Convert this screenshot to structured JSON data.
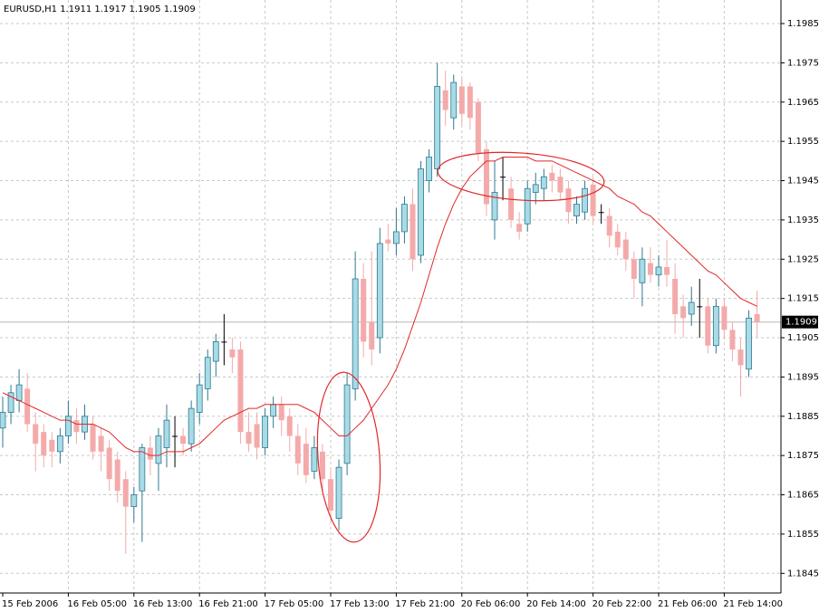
{
  "chart_data": {
    "type": "candlestick",
    "title": "EURUSD,H1  1.1911 1.1917 1.1905 1.1909",
    "categories": [
      "15 Feb 2006",
      null,
      null,
      null,
      null,
      null,
      null,
      null,
      "16 Feb 05:00",
      null,
      null,
      null,
      null,
      null,
      null,
      null,
      "16 Feb 13:00",
      null,
      null,
      null,
      null,
      null,
      null,
      null,
      "16 Feb 21:00",
      null,
      null,
      null,
      null,
      null,
      null,
      null,
      "17 Feb 05:00",
      null,
      null,
      null,
      null,
      null,
      null,
      null,
      "17 Feb 13:00",
      null,
      null,
      null,
      null,
      null,
      null,
      null,
      "17 Feb 21:00",
      null,
      null,
      null,
      null,
      null,
      null,
      null,
      "20 Feb 06:00",
      null,
      null,
      null,
      null,
      null,
      null,
      null,
      "20 Feb 14:00",
      null,
      null,
      null,
      null,
      null,
      null,
      null,
      "20 Feb 22:00",
      null,
      null,
      null,
      null,
      null,
      null,
      null,
      "21 Feb 06:00",
      null,
      null,
      null,
      null,
      null,
      null,
      null,
      "21 Feb 14:00",
      null,
      null,
      null,
      null
    ],
    "open": [
      1.1882,
      1.1886,
      1.1889,
      1.1892,
      1.1883,
      1.1881,
      1.1879,
      1.1876,
      1.188,
      1.1884,
      1.1881,
      1.1883,
      1.188,
      1.1877,
      1.1874,
      1.1869,
      1.1862,
      1.1866,
      1.1877,
      1.1873,
      1.1877,
      1.188,
      1.188,
      1.1878,
      1.1886,
      1.1892,
      1.1899,
      1.1904,
      1.1902,
      1.1902,
      1.1881,
      1.1883,
      1.1877,
      1.1885,
      1.1888,
      1.1885,
      1.188,
      1.1878,
      1.1871,
      1.1876,
      1.1869,
      1.1859,
      1.1873,
      1.1892,
      1.192,
      1.1909,
      1.1905,
      1.193,
      1.1929,
      1.1932,
      1.1939,
      1.1926,
      1.1945,
      1.1948,
      1.1968,
      1.1961,
      1.1969,
      1.1969,
      1.1965,
      1.1953,
      1.1935,
      1.1946,
      1.1943,
      1.1934,
      1.1934,
      1.1942,
      1.1943,
      1.1947,
      1.1946,
      1.1943,
      1.1936,
      1.1937,
      1.1944,
      1.1937,
      1.1936,
      1.1932,
      1.193,
      1.1925,
      1.1919,
      1.1924,
      1.1921,
      1.1923,
      1.192,
      1.1913,
      1.1911,
      1.1913,
      1.1913,
      1.1903,
      1.1913,
      1.1907,
      1.1902,
      1.1897,
      1.1911
    ],
    "high": [
      1.189,
      1.1893,
      1.1897,
      1.1896,
      1.1886,
      1.1883,
      1.1881,
      1.1882,
      1.1889,
      1.1887,
      1.1888,
      1.1885,
      1.1882,
      1.1879,
      1.1876,
      1.1871,
      1.1867,
      1.1878,
      1.188,
      1.1882,
      1.1888,
      1.1885,
      1.1882,
      1.1889,
      1.1896,
      1.1902,
      1.1906,
      1.1911,
      1.1905,
      1.1904,
      1.1886,
      1.1886,
      1.1887,
      1.189,
      1.189,
      1.1887,
      1.1883,
      1.1882,
      1.188,
      1.1878,
      1.1872,
      1.1874,
      1.1896,
      1.1927,
      1.1924,
      1.1927,
      1.1933,
      1.1934,
      1.1938,
      1.1941,
      1.1943,
      1.195,
      1.1953,
      1.1975,
      1.1973,
      1.1972,
      1.1971,
      1.197,
      1.1966,
      1.1955,
      1.195,
      1.1951,
      1.1946,
      1.1937,
      1.1945,
      1.1947,
      1.1948,
      1.1949,
      1.1948,
      1.1945,
      1.1941,
      1.1945,
      1.1946,
      1.1939,
      1.1938,
      1.1934,
      1.1932,
      1.1927,
      1.1928,
      1.1928,
      1.1926,
      1.193,
      1.1924,
      1.1916,
      1.1918,
      1.192,
      1.1915,
      1.1915,
      1.1915,
      1.1909,
      1.1905,
      1.1912,
      1.1917
    ],
    "low": [
      1.1877,
      1.1883,
      1.1886,
      1.1881,
      1.1871,
      1.1872,
      1.1872,
      1.1873,
      1.1878,
      1.1878,
      1.1879,
      1.1874,
      1.1871,
      1.1866,
      1.1863,
      1.185,
      1.1858,
      1.1853,
      1.187,
      1.1866,
      1.1872,
      1.1872,
      1.1875,
      1.1876,
      1.1883,
      1.1889,
      1.1895,
      1.1898,
      1.1896,
      1.1878,
      1.1876,
      1.1874,
      1.1875,
      1.1882,
      1.188,
      1.1876,
      1.187,
      1.1868,
      1.1869,
      1.1866,
      1.1858,
      1.1856,
      1.187,
      1.1889,
      1.19,
      1.1898,
      1.1901,
      1.1927,
      1.1926,
      1.1929,
      1.1922,
      1.1924,
      1.1942,
      1.1946,
      1.1959,
      1.1958,
      1.1959,
      1.1958,
      1.195,
      1.1936,
      1.193,
      1.194,
      1.1933,
      1.193,
      1.1932,
      1.1939,
      1.194,
      1.1942,
      1.194,
      1.1934,
      1.1934,
      1.1935,
      1.1934,
      1.1934,
      1.1928,
      1.1926,
      1.1922,
      1.1915,
      1.1913,
      1.1919,
      1.1918,
      1.1918,
      1.1906,
      1.1905,
      1.1908,
      1.1905,
      1.1901,
      1.1901,
      1.1905,
      1.1899,
      1.189,
      1.1895,
      1.1905
    ],
    "close": [
      1.1886,
      1.1891,
      1.1893,
      1.1883,
      1.1878,
      1.1875,
      1.1876,
      1.188,
      1.1885,
      1.1881,
      1.1885,
      1.1876,
      1.1876,
      1.1869,
      1.1866,
      1.1862,
      1.1865,
      1.1877,
      1.1874,
      1.188,
      1.1884,
      1.188,
      1.1878,
      1.1887,
      1.1893,
      1.19,
      1.1904,
      1.1904,
      1.19,
      1.1881,
      1.1878,
      1.1877,
      1.1885,
      1.1888,
      1.1884,
      1.188,
      1.1873,
      1.187,
      1.1877,
      1.1869,
      1.1861,
      1.1872,
      1.1893,
      1.192,
      1.1904,
      1.1902,
      1.1929,
      1.1929,
      1.1932,
      1.1939,
      1.1925,
      1.1948,
      1.1951,
      1.1969,
      1.1963,
      1.197,
      1.1962,
      1.1961,
      1.1952,
      1.1939,
      1.1942,
      1.1946,
      1.1935,
      1.1932,
      1.1943,
      1.1944,
      1.1946,
      1.1945,
      1.1942,
      1.1937,
      1.1939,
      1.1943,
      1.1936,
      1.1937,
      1.1931,
      1.1928,
      1.1925,
      1.192,
      1.1925,
      1.1921,
      1.1923,
      1.1921,
      1.1911,
      1.191,
      1.1914,
      1.1913,
      1.1903,
      1.1913,
      1.1907,
      1.1902,
      1.1898,
      1.191,
      1.1909
    ],
    "ma": {
      "color": "#e0282a",
      "values": [
        1.1891,
        1.189,
        1.1889,
        1.1888,
        1.1887,
        1.1886,
        1.1885,
        1.1884,
        1.1884,
        1.1883,
        1.1883,
        1.1883,
        1.1882,
        1.1881,
        1.1879,
        1.1877,
        1.1876,
        1.1876,
        1.1875,
        1.1875,
        1.1876,
        1.1876,
        1.1876,
        1.1877,
        1.1878,
        1.188,
        1.1882,
        1.1884,
        1.1885,
        1.1886,
        1.1887,
        1.1887,
        1.1888,
        1.1888,
        1.1888,
        1.1888,
        1.1888,
        1.1887,
        1.1886,
        1.1884,
        1.1882,
        1.188,
        1.188,
        1.1882,
        1.1884,
        1.1887,
        1.189,
        1.1893,
        1.1897,
        1.1902,
        1.1908,
        1.1914,
        1.1921,
        1.1928,
        1.1934,
        1.1939,
        1.1943,
        1.1946,
        1.1948,
        1.195,
        1.195,
        1.1951,
        1.1951,
        1.1951,
        1.1951,
        1.195,
        1.195,
        1.195,
        1.1949,
        1.1948,
        1.1947,
        1.1946,
        1.1945,
        1.1944,
        1.1943,
        1.1941,
        1.194,
        1.1939,
        1.1937,
        1.1936,
        1.1934,
        1.1932,
        1.193,
        1.1928,
        1.1926,
        1.1924,
        1.1922,
        1.1921,
        1.1919,
        1.1917,
        1.1915,
        1.1914,
        1.1913
      ]
    },
    "up_color": "#a8dbe6",
    "up_stroke": "#2f7890",
    "down_color": "#f4aaaa",
    "doji_color": "#000000",
    "bid": 1.1909,
    "ylim": [
      1.184,
      1.1991
    ],
    "yticks": [
      1.1845,
      1.1855,
      1.1865,
      1.1875,
      1.1885,
      1.1895,
      1.1905,
      1.1915,
      1.1925,
      1.1935,
      1.1945,
      1.1955,
      1.1965,
      1.1975,
      1.1985
    ],
    "grid": true
  }
}
